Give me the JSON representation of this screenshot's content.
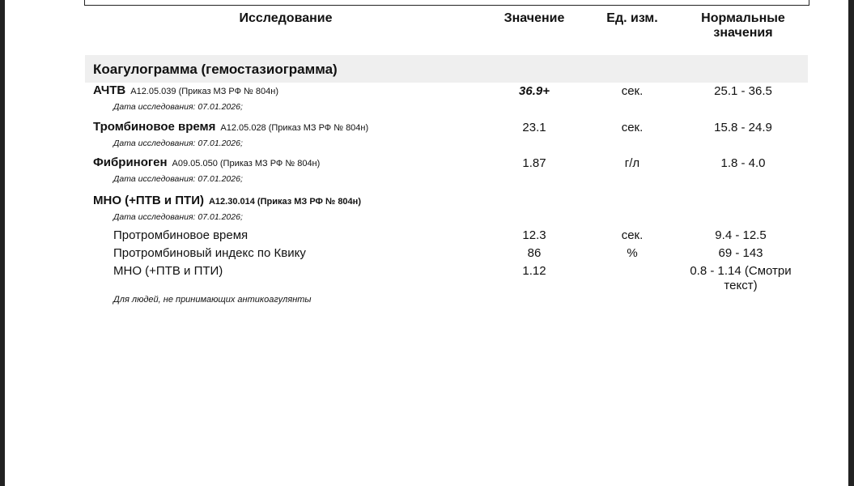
{
  "table": {
    "header": [
      "Исследование",
      "Значение",
      "Ед. изм.",
      "Нормальные значения"
    ],
    "section": "Коагулограмма (гемостазиограмма)",
    "rows": [
      {
        "name": "АЧТВ",
        "code": "A12.05.039 (Приказ МЗ РФ № 804н)",
        "date": "Дата исследования: 07.01.2026;",
        "value": "36.9+",
        "unit": "сек.",
        "norm": "25.1 - 36.5"
      },
      {
        "name": "Тромбиновое время",
        "code": "A12.05.028 (Приказ МЗ РФ № 804н)",
        "date": "Дата исследования: 07.01.2026;",
        "value": "23.1",
        "unit": "сек.",
        "norm": "15.8 - 24.9"
      },
      {
        "name": "Фибриноген",
        "code": "A09.05.050 (Приказ МЗ РФ № 804н)",
        "date": "Дата исследования: 07.01.2026;",
        "value": "1.87",
        "unit": "г/л",
        "norm": "1.8 - 4.0"
      },
      {
        "name": "МНО (+ПТВ и ПТИ)",
        "code": "A12.30.014 (Приказ МЗ РФ № 804н)",
        "date": "Дата исследования: 07.01.2026;"
      }
    ],
    "subrows": [
      {
        "name": "Протромбиновое время",
        "value": "12.3",
        "unit": "сек.",
        "norm": "9.4 - 12.5"
      },
      {
        "name": "Протромбиновый индекс по Квику",
        "value": "86",
        "unit": "%",
        "norm": "69 - 143"
      },
      {
        "name": "МНО (+ПТВ и ПТИ)",
        "value": "1.12",
        "norm": "0.8 - 1.14 (Смотри текст)"
      }
    ],
    "note": "Для людей, не принимающих антикоагулянты"
  }
}
